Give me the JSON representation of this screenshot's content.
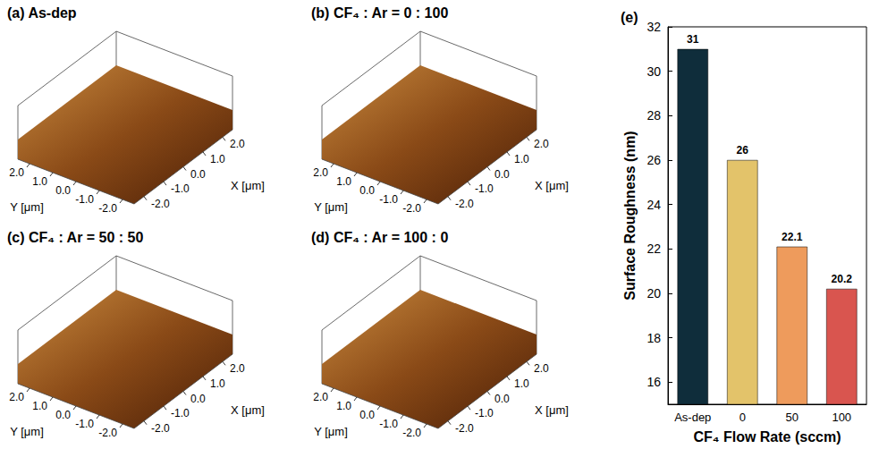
{
  "chart_data": {
    "type": "bar",
    "title": "(e)",
    "x_label": "CF₄ Flow Rate (sccm)",
    "y_label": "Surface Roughness (nm)",
    "categories": [
      "As-dep",
      "0",
      "50",
      "100"
    ],
    "values": [
      31,
      26,
      22.1,
      20.2
    ],
    "colors": [
      "#0f2d3b",
      "#e3c36a",
      "#ee9b5c",
      "#d9554f"
    ],
    "ylim": [
      15,
      32
    ],
    "yticks": [
      16,
      18,
      20,
      22,
      24,
      26,
      28,
      30,
      32
    ],
    "grid": false,
    "data_labels": true
  },
  "panels": [
    {
      "title": "(a) As-dep",
      "x_label": "X [μm]",
      "y_label": "Y [μm]",
      "x_ticks": [
        "2.0",
        "1.0",
        "0.0",
        "-1.0",
        "-2.0"
      ],
      "y_ticks": [
        "2.0",
        "1.0",
        "0.0",
        "-1.0",
        "-2.0"
      ]
    },
    {
      "title": "(b) CF₄ : Ar = 0 : 100",
      "x_label": "X [μm]",
      "y_label": "Y [μm]",
      "x_ticks": [
        "2.0",
        "1.0",
        "0.0",
        "-1.0",
        "-2.0"
      ],
      "y_ticks": [
        "2.0",
        "1.0",
        "0.0",
        "-1.0",
        "-2.0"
      ]
    },
    {
      "title": "(c) CF₄ : Ar = 50 : 50",
      "x_label": "X [μm]",
      "y_label": "Y [μm]",
      "x_ticks": [
        "2.0",
        "1.0",
        "0.0",
        "-1.0",
        "-2.0"
      ],
      "y_ticks": [
        "2.0",
        "1.0",
        "0.0",
        "-1.0",
        "-2.0"
      ]
    },
    {
      "title": "(d) CF₄ : Ar = 100 : 0",
      "x_label": "X [μm]",
      "y_label": "Y [μm]",
      "x_ticks": [
        "2.0",
        "1.0",
        "0.0",
        "-1.0",
        "-2.0"
      ],
      "y_ticks": [
        "2.0",
        "1.0",
        "0.0",
        "-1.0",
        "-2.0"
      ]
    }
  ]
}
